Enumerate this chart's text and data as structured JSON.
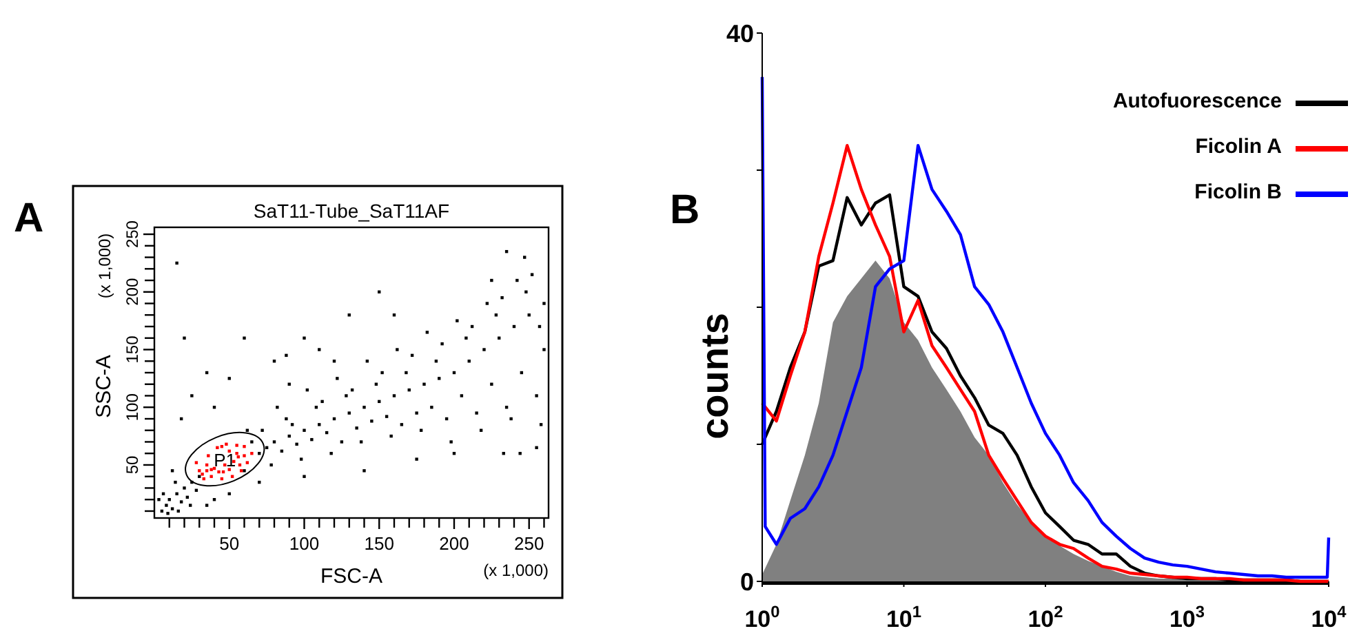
{
  "chart_data": [
    {
      "type": "scatter",
      "title": "SaT11-Tube_SaT11AF",
      "xlabel": "FSC-A",
      "ylabel": "SSC-A",
      "annotations": [
        "A",
        "(x 1,000)",
        "(x 1,000)",
        "P1"
      ],
      "xlim": [
        0,
        263
      ],
      "ylim": [
        4,
        256
      ],
      "xticks": [
        {
          "value": 10,
          "label": null
        },
        {
          "value": 20,
          "label": null
        },
        {
          "value": 30,
          "label": null
        },
        {
          "value": 40,
          "label": null
        },
        50,
        {
          "value": 60,
          "label": null
        },
        {
          "value": 70,
          "label": null
        },
        {
          "value": 80,
          "label": null
        },
        {
          "value": 90,
          "label": null
        },
        100,
        {
          "value": 110,
          "label": null
        },
        {
          "value": 120,
          "label": null
        },
        {
          "value": 130,
          "label": null
        },
        {
          "value": 140,
          "label": null
        },
        150,
        {
          "value": 160,
          "label": null
        },
        {
          "value": 170,
          "label": null
        },
        {
          "value": 180,
          "label": null
        },
        {
          "value": 190,
          "label": null
        },
        200,
        {
          "value": 210,
          "label": null
        },
        {
          "value": 220,
          "label": null
        },
        {
          "value": 230,
          "label": null
        },
        {
          "value": 240,
          "label": null
        },
        250,
        {
          "value": 260,
          "label": null
        }
      ],
      "yticks": [
        {
          "value": 10,
          "label": null
        },
        {
          "value": 20,
          "label": null
        },
        {
          "value": 30,
          "label": null
        },
        {
          "value": 40,
          "label": null
        },
        50,
        {
          "value": 60,
          "label": null
        },
        {
          "value": 70,
          "label": null
        },
        {
          "value": 80,
          "label": null
        },
        {
          "value": 90,
          "label": null
        },
        100,
        {
          "value": 110,
          "label": null
        },
        {
          "value": 120,
          "label": null
        },
        {
          "value": 130,
          "label": null
        },
        {
          "value": 140,
          "label": null
        },
        150,
        {
          "value": 160,
          "label": null
        },
        {
          "value": 170,
          "label": null
        },
        {
          "value": 180,
          "label": null
        },
        {
          "value": 190,
          "label": null
        },
        200,
        {
          "value": 210,
          "label": null
        },
        {
          "value": 220,
          "label": null
        },
        {
          "value": 230,
          "label": null
        },
        {
          "value": 240,
          "label": null
        },
        250
      ],
      "series": [
        {
          "color": "#000000",
          "x": [
            5,
            8,
            10,
            12,
            15,
            18,
            20,
            6,
            14,
            22,
            25,
            9,
            16,
            3,
            28,
            24,
            30,
            12,
            70,
            75,
            80,
            85,
            90,
            95,
            100,
            105,
            110,
            115,
            120,
            125,
            130,
            135,
            140,
            145,
            150,
            155,
            160,
            165,
            170,
            175,
            180,
            185,
            190,
            195,
            200,
            205,
            210,
            215,
            220,
            225,
            230,
            235,
            240,
            245,
            250,
            255,
            260,
            72,
            78,
            88,
            98,
            108,
            118,
            128,
            138,
            148,
            158,
            168,
            178,
            188,
            198,
            208,
            218,
            228,
            238,
            248,
            258,
            82,
            102,
            122,
            142,
            162,
            182,
            202,
            222,
            242,
            252,
            232,
            212,
            192,
            172,
            152,
            132,
            112,
            92,
            65,
            60,
            62,
            120,
            160,
            150,
            130,
            110,
            100,
            20,
            25,
            15,
            18,
            40,
            35,
            50,
            90,
            88,
            60,
            80,
            247,
            235,
            225,
            244,
            200,
            175,
            140,
            100,
            70,
            50,
            40,
            35,
            255,
            260,
            257,
            233
          ],
          "values": [
            10,
            15,
            20,
            12,
            25,
            18,
            30,
            25,
            35,
            22,
            35,
            8,
            10,
            20,
            28,
            15,
            40,
            45,
            60,
            65,
            70,
            62,
            75,
            68,
            80,
            72,
            85,
            78,
            90,
            70,
            95,
            82,
            100,
            88,
            105,
            92,
            110,
            85,
            115,
            95,
            120,
            100,
            125,
            90,
            130,
            110,
            140,
            95,
            150,
            120,
            160,
            100,
            170,
            130,
            180,
            110,
            150,
            80,
            50,
            90,
            55,
            100,
            60,
            110,
            70,
            120,
            75,
            130,
            80,
            140,
            70,
            160,
            80,
            180,
            90,
            200,
            85,
            100,
            115,
            125,
            140,
            150,
            165,
            175,
            190,
            210,
            215,
            195,
            170,
            155,
            145,
            130,
            115,
            105,
            85,
            70,
            45,
            80,
            140,
            180,
            200,
            180,
            150,
            160,
            160,
            110,
            225,
            90,
            100,
            130,
            125,
            120,
            145,
            160,
            140,
            230,
            235,
            210,
            60,
            60,
            55,
            45,
            40,
            35,
            25,
            20,
            15,
            65,
            190,
            170,
            60
          ]
        },
        {
          "color": "#ff0000",
          "x": [
            30,
            35,
            38,
            45,
            50,
            55,
            60,
            62,
            58,
            52,
            45,
            38,
            32,
            36,
            42,
            48,
            55,
            40,
            47,
            53,
            43,
            50,
            57,
            35,
            28,
            65,
            60,
            33,
            46,
            56
          ],
          "values": [
            45,
            50,
            46,
            66,
            62,
            60,
            58,
            52,
            45,
            40,
            38,
            40,
            42,
            58,
            65,
            68,
            67,
            47,
            50,
            53,
            44,
            46,
            50,
            45,
            52,
            60,
            66,
            38,
            44,
            57
          ]
        }
      ]
    },
    {
      "type": "line",
      "ylabel": "counts",
      "annotations": [
        "B"
      ],
      "log": "x",
      "legend": "top right",
      "xlim": [
        1,
        10000
      ],
      "ylim": [
        0,
        40
      ],
      "xticks": [
        {
          "value": 1,
          "label": "10$^{0}$"
        },
        {
          "value": 10,
          "label": "10$^{1}$"
        },
        {
          "value": 100,
          "label": "10$^{2}$"
        },
        {
          "value": 1000,
          "label": "10$^{3}$"
        },
        {
          "value": 10000,
          "label": "10$^{4}$"
        }
      ],
      "yticks": [
        0,
        {
          "value": 10,
          "label": null
        },
        {
          "value": 20,
          "label": null
        },
        {
          "value": 30,
          "label": null
        },
        40
      ],
      "series": [
        {
          "type": "area",
          "color": "#808080",
          "x": [
            1,
            1.26,
            1.58,
            2,
            2.51,
            3.16,
            3.98,
            5.01,
            6.31,
            7.94,
            10,
            12.6,
            15.8,
            20,
            25.1,
            31.6,
            39.8,
            50.1,
            63.1,
            79.4,
            100,
            126,
            158,
            200,
            251,
            316,
            398,
            501,
            631,
            794,
            1000,
            1259,
            1585,
            1995,
            2512,
            3162,
            3981,
            5012,
            6310,
            7943,
            10000
          ],
          "values": [
            0.5,
            2.7,
            5.9,
            9.2,
            13,
            18.9,
            20.8,
            22.1,
            23.4,
            22.1,
            18.9,
            17.6,
            15.6,
            14,
            12.4,
            10.5,
            9.2,
            7.2,
            5.6,
            4.3,
            3.3,
            2.6,
            2,
            1.5,
            1.1,
            0.7,
            0.4,
            0.3,
            0.2,
            0.2,
            0.1,
            0.1,
            0.1,
            0,
            0,
            0,
            0,
            0,
            0,
            0,
            0
          ]
        },
        {
          "name": "Autofuorescence",
          "color": "#000000",
          "x": [
            1,
            1.26,
            1.58,
            2,
            2.51,
            3.16,
            3.98,
            5.01,
            6.31,
            7.94,
            10,
            12.6,
            15.8,
            20,
            25.1,
            31.6,
            39.8,
            50.1,
            63.1,
            79.4,
            100,
            126,
            158,
            200,
            251,
            316,
            398,
            501,
            631,
            794,
            1000,
            1259,
            1585,
            1995,
            2512,
            3162,
            3981,
            5012,
            6310,
            7943,
            10000
          ],
          "values": [
            10,
            12.4,
            15.6,
            18.2,
            23,
            23.4,
            28,
            26,
            27.6,
            28.2,
            21.5,
            20.8,
            18.2,
            17,
            15,
            13.4,
            11.4,
            10.8,
            9.2,
            6.9,
            5,
            4,
            3,
            2.7,
            2,
            2,
            1.1,
            0.6,
            0.4,
            0.3,
            0.2,
            0.2,
            0.2,
            0.1,
            0.1,
            0.1,
            0.1,
            0.1,
            0,
            0,
            0
          ]
        },
        {
          "name": "Ficolin A",
          "color": "#ff0000",
          "x": [
            1,
            1.26,
            1.58,
            2,
            2.51,
            3.16,
            3.98,
            5.01,
            6.31,
            7.94,
            10,
            12.6,
            15.8,
            20,
            25.1,
            31.6,
            39.8,
            50.1,
            63.1,
            79.4,
            100,
            126,
            158,
            200,
            251,
            316,
            398,
            501,
            631,
            794,
            1000,
            1259,
            1585,
            1995,
            2512,
            3162,
            3981,
            5012,
            6310,
            7943,
            10000
          ],
          "values": [
            13,
            11.7,
            15,
            18.2,
            23.7,
            27.6,
            31.8,
            28.6,
            26,
            23.7,
            18.2,
            20.5,
            17.2,
            15.6,
            14,
            12.4,
            9.2,
            7.5,
            5.9,
            4.3,
            3.3,
            2.7,
            2.4,
            1.7,
            1.1,
            0.9,
            0.6,
            0.5,
            0.4,
            0.3,
            0.3,
            0.2,
            0.2,
            0.2,
            0.1,
            0.1,
            0.1,
            0.1,
            0,
            0,
            0
          ]
        },
        {
          "name": "Ficolin B",
          "color": "#0000ff",
          "x": [
            1,
            1.05,
            1.26,
            1.58,
            2,
            2.51,
            3.16,
            3.98,
            5.01,
            6.31,
            7.94,
            10,
            12.6,
            15.8,
            20,
            25.1,
            31.6,
            39.8,
            50.1,
            63.1,
            79.4,
            100,
            126,
            158,
            200,
            251,
            316,
            398,
            501,
            631,
            794,
            1000,
            1259,
            1585,
            1995,
            2512,
            3162,
            3981,
            5012,
            6310,
            7943,
            9772,
            10000
          ],
          "values": [
            36.8,
            4,
            2.7,
            4.6,
            5.3,
            6.9,
            9.2,
            12.4,
            15.6,
            21.5,
            22.8,
            23.4,
            31.8,
            28.6,
            27,
            25.3,
            21.5,
            20.2,
            18.2,
            15.6,
            13,
            10.8,
            9.2,
            7.2,
            5.9,
            4.3,
            3.3,
            2.4,
            1.7,
            1.4,
            1.2,
            1.1,
            0.9,
            0.7,
            0.6,
            0.5,
            0.4,
            0.4,
            0.3,
            0.3,
            0.3,
            0.3,
            3.2
          ]
        }
      ]
    }
  ]
}
